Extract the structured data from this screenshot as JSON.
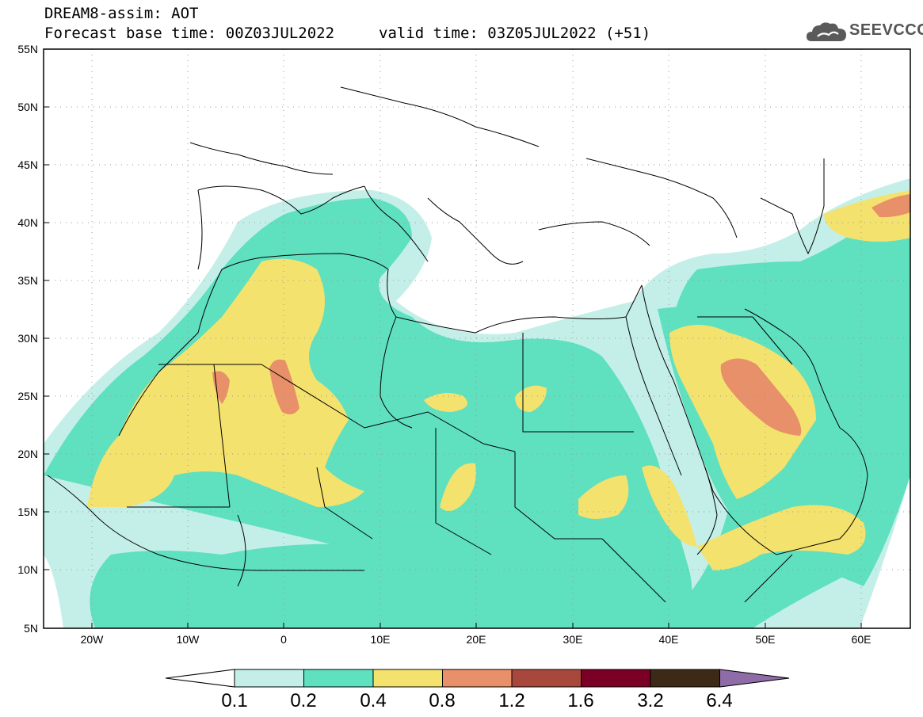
{
  "header": {
    "title_line1": "DREAM8-assim: AOT",
    "title_line2": "Forecast base time: 00Z03JUL2022",
    "valid_time": "valid time: 03Z05JUL2022 (+51)",
    "logo_text": "SEEVCCC",
    "logo_icon": "cloud-icon"
  },
  "map": {
    "lat_labels": [
      "55N",
      "50N",
      "45N",
      "40N",
      "35N",
      "30N",
      "25N",
      "20N",
      "15N",
      "10N",
      "5N"
    ],
    "lon_labels": [
      "20W",
      "10W",
      "0",
      "10E",
      "20E",
      "30E",
      "40E",
      "50E",
      "60E"
    ],
    "lat_range": [
      5,
      55
    ],
    "lon_range": [
      -25,
      65
    ],
    "grid": "dotted"
  },
  "colorbar": {
    "labels": [
      "0.1",
      "0.2",
      "0.4",
      "0.8",
      "1.2",
      "1.6",
      "3.2",
      "6.4"
    ],
    "colors": [
      "#ffffff",
      "#c4efe8",
      "#5fe0bf",
      "#f4e26e",
      "#e8906a",
      "#a8483c",
      "#7a0026",
      "#3d2a16",
      "#8e6ca8"
    ]
  }
}
